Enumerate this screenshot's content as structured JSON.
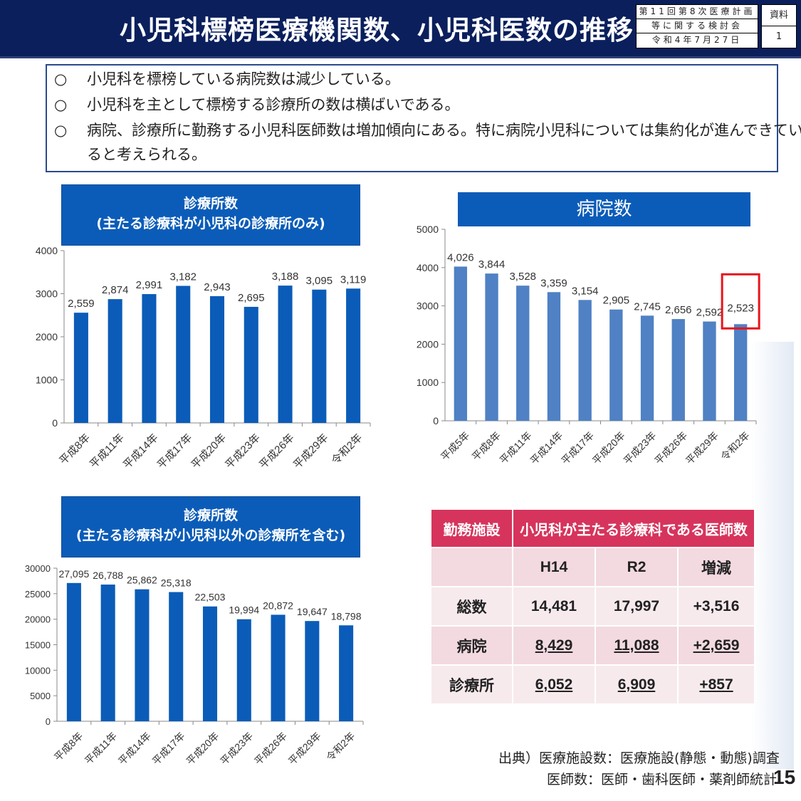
{
  "header": {
    "title": "小児科標榜医療機関数、小児科医数の推移",
    "meeting_lines": [
      "第11回第8次医療計画",
      "等に関する検討会",
      "令和4年7月27日"
    ],
    "doc_label": "資料",
    "doc_number": "1"
  },
  "summary": {
    "bullet": "○",
    "lines": [
      "小児科を標榜している病院数は減少している。",
      "小児科を主として標榜する診療所の数は横ばいである。",
      "病院、診療所に勤務する小児科医師数は増加傾向にある。特に病院小児科については集約化が進んできてい",
      "ると考えられる。"
    ]
  },
  "chart_data": [
    {
      "type": "bar",
      "title": "診療所数",
      "subtitle": "(主たる診療科が小児科の診療所のみ)",
      "categories": [
        "平成8年",
        "平成11年",
        "平成14年",
        "平成17年",
        "平成20年",
        "平成23年",
        "平成26年",
        "平成29年",
        "令和2年"
      ],
      "values": [
        2559,
        2874,
        2991,
        3182,
        2943,
        2695,
        3188,
        3095,
        3119
      ],
      "value_labels": [
        "2,559",
        "2,874",
        "2,991",
        "3,182",
        "2,943",
        "2,695",
        "3,188",
        "3,095",
        "3,119"
      ],
      "yticks": [
        "0",
        "1000",
        "2000",
        "3000",
        "4000"
      ],
      "ylim": [
        0,
        4000
      ],
      "bar_color": "#0b5cb8",
      "grid": false
    },
    {
      "type": "bar",
      "title": "病院数",
      "categories": [
        "平成5年",
        "平成8年",
        "平成11年",
        "平成14年",
        "平成17年",
        "平成20年",
        "平成23年",
        "平成26年",
        "平成29年",
        "令和2年"
      ],
      "values": [
        4026,
        3844,
        3528,
        3359,
        3154,
        2905,
        2745,
        2656,
        2592,
        2523
      ],
      "value_labels": [
        "4,026",
        "3,844",
        "3,528",
        "3,359",
        "3,154",
        "2,905",
        "2,745",
        "2,656",
        "2,592",
        "2,523"
      ],
      "yticks": [
        "0",
        "1000",
        "2000",
        "3000",
        "4000",
        "5000"
      ],
      "ylim": [
        0,
        5000
      ],
      "bar_color": "#4f81c4",
      "highlight": "令和2年",
      "highlight_color": "#e8141c",
      "grid": false
    },
    {
      "type": "bar",
      "title": "診療所数",
      "subtitle": "(主たる診療科が小児科以外の診療所を含む)",
      "categories": [
        "平成8年",
        "平成11年",
        "平成14年",
        "平成17年",
        "平成20年",
        "平成23年",
        "平成26年",
        "平成29年",
        "令和2年"
      ],
      "values": [
        27095,
        26788,
        25862,
        25318,
        22503,
        19994,
        20872,
        19647,
        18798
      ],
      "value_labels": [
        "27,095",
        "26,788",
        "25,862",
        "25,318",
        "22,503",
        "19,994",
        "20,872",
        "19,647",
        "18,798"
      ],
      "yticks": [
        "0",
        "5000",
        "10000",
        "15000",
        "20000",
        "25000",
        "30000"
      ],
      "ylim": [
        0,
        30000
      ],
      "bar_color": "#0b5cb8",
      "grid": false
    },
    {
      "type": "table",
      "col_header_left": "勤務施設",
      "col_header_span": "小児科が主たる診療科である医師数",
      "columns": [
        "",
        "H14",
        "R2",
        "増減"
      ],
      "rows": [
        {
          "label": "総数",
          "h14": "14,481",
          "r2": "17,997",
          "diff": "+3,516"
        },
        {
          "label": "病院",
          "h14": "8,429",
          "r2": "11,088",
          "diff": "+2,659"
        },
        {
          "label": "診療所",
          "h14": "6,052",
          "r2": "6,909",
          "diff": "+857"
        }
      ]
    }
  ],
  "footer": {
    "source_line1": "出典）医療施設数：医療施設(静態・動態)調査",
    "source_line2": "医師数：医師・歯科医師・薬剤師統計",
    "page_number": "15"
  }
}
